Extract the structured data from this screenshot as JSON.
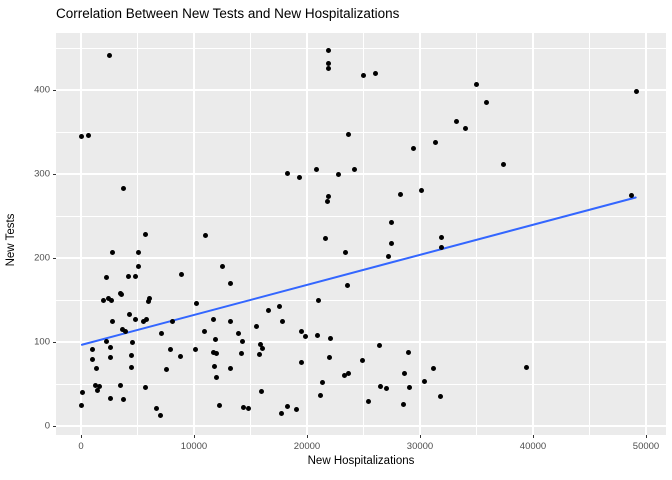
{
  "title": "Correlation Between New Tests and New Hospitalizations",
  "chart_data": {
    "type": "scatter",
    "title": "Correlation Between New Tests and New Hospitalizations",
    "xlabel": "New Hospitalizations",
    "ylabel": "New Tests",
    "xlim": [
      -2200,
      51800
    ],
    "ylim": [
      -11,
      468
    ],
    "x_ticks": [
      0,
      10000,
      20000,
      30000,
      40000,
      50000
    ],
    "x_tick_labels": [
      "0",
      "10000",
      "20000",
      "30000",
      "40000",
      "50000"
    ],
    "y_ticks": [
      0,
      100,
      200,
      300,
      400
    ],
    "y_tick_labels": [
      "0",
      "100",
      "200",
      "300",
      "400"
    ],
    "x_minor_ticks": [
      5000,
      15000,
      25000,
      35000,
      45000
    ],
    "y_minor_ticks": [
      50,
      150,
      250,
      350,
      450
    ],
    "grid": true,
    "legend": false,
    "panel_background": "#EBEBEB",
    "gridline_color": "#FFFFFF",
    "point_color": "#000000",
    "trend_line": {
      "type": "linear",
      "color": "#3366FF",
      "x_start": 0,
      "y_start": 96,
      "x_end": 49200,
      "y_end": 272
    },
    "points": [
      [
        0,
        345
      ],
      [
        700,
        346
      ],
      [
        2500,
        441
      ],
      [
        21900,
        447
      ],
      [
        21900,
        431
      ],
      [
        21900,
        426
      ],
      [
        23700,
        347
      ],
      [
        25000,
        417
      ],
      [
        26100,
        420
      ],
      [
        35000,
        406
      ],
      [
        35900,
        385
      ],
      [
        33200,
        362
      ],
      [
        34000,
        354
      ],
      [
        31400,
        338
      ],
      [
        29400,
        330
      ],
      [
        37400,
        311
      ],
      [
        49200,
        398
      ],
      [
        3800,
        283
      ],
      [
        5700,
        228
      ],
      [
        2800,
        206
      ],
      [
        5100,
        206
      ],
      [
        5100,
        190
      ],
      [
        2300,
        177
      ],
      [
        4200,
        178
      ],
      [
        4800,
        178
      ],
      [
        8900,
        180
      ],
      [
        3500,
        158
      ],
      [
        3600,
        156
      ],
      [
        2400,
        152
      ],
      [
        6100,
        152
      ],
      [
        18300,
        301
      ],
      [
        19300,
        296
      ],
      [
        20800,
        305
      ],
      [
        22800,
        300
      ],
      [
        24200,
        305
      ],
      [
        21900,
        273
      ],
      [
        21800,
        267
      ],
      [
        11000,
        227
      ],
      [
        21600,
        223
      ],
      [
        23400,
        206
      ],
      [
        12500,
        190
      ],
      [
        13200,
        170
      ],
      [
        23600,
        167
      ],
      [
        21000,
        150
      ],
      [
        28300,
        276
      ],
      [
        30100,
        280
      ],
      [
        27500,
        242
      ],
      [
        27500,
        217
      ],
      [
        27200,
        202
      ],
      [
        31900,
        224
      ],
      [
        31900,
        212
      ],
      [
        48700,
        274
      ],
      [
        2000,
        150
      ],
      [
        2700,
        149
      ],
      [
        6000,
        148
      ],
      [
        4300,
        133
      ],
      [
        4800,
        127
      ],
      [
        2800,
        125
      ],
      [
        5500,
        124
      ],
      [
        5800,
        127
      ],
      [
        3700,
        115
      ],
      [
        3900,
        112
      ],
      [
        7100,
        110
      ],
      [
        2300,
        101
      ],
      [
        2600,
        94
      ],
      [
        1000,
        91
      ],
      [
        4600,
        99
      ],
      [
        7900,
        91
      ],
      [
        1000,
        79
      ],
      [
        2600,
        81
      ],
      [
        4500,
        84
      ],
      [
        4500,
        70
      ],
      [
        1400,
        69
      ],
      [
        7600,
        67
      ],
      [
        1300,
        48
      ],
      [
        1600,
        47
      ],
      [
        1500,
        42
      ],
      [
        100,
        40
      ],
      [
        3500,
        48
      ],
      [
        2600,
        33
      ],
      [
        0,
        25
      ],
      [
        3800,
        31
      ],
      [
        5700,
        46
      ],
      [
        6700,
        21
      ],
      [
        7000,
        13
      ],
      [
        8100,
        125
      ],
      [
        8800,
        83
      ],
      [
        10100,
        91
      ],
      [
        10200,
        146
      ],
      [
        16600,
        137
      ],
      [
        17600,
        142
      ],
      [
        17800,
        125
      ],
      [
        11700,
        127
      ],
      [
        13200,
        125
      ],
      [
        10900,
        113
      ],
      [
        11900,
        103
      ],
      [
        13900,
        110
      ],
      [
        14300,
        101
      ],
      [
        15500,
        119
      ],
      [
        19500,
        112
      ],
      [
        19900,
        106
      ],
      [
        20900,
        108
      ],
      [
        22100,
        104
      ],
      [
        11700,
        88
      ],
      [
        12000,
        86
      ],
      [
        14200,
        86
      ],
      [
        15900,
        97
      ],
      [
        16100,
        92
      ],
      [
        15800,
        85
      ],
      [
        11800,
        71
      ],
      [
        13200,
        69
      ],
      [
        12000,
        58
      ],
      [
        19500,
        76
      ],
      [
        22000,
        82
      ],
      [
        23300,
        60
      ],
      [
        23700,
        62
      ],
      [
        21400,
        52
      ],
      [
        21200,
        36
      ],
      [
        16000,
        41
      ],
      [
        12300,
        25
      ],
      [
        14400,
        22
      ],
      [
        14800,
        21
      ],
      [
        18300,
        23
      ],
      [
        17700,
        15
      ],
      [
        19100,
        20
      ],
      [
        26400,
        96
      ],
      [
        29000,
        88
      ],
      [
        24900,
        78
      ],
      [
        31200,
        68
      ],
      [
        28600,
        62
      ],
      [
        30400,
        53
      ],
      [
        26500,
        47
      ],
      [
        27000,
        45
      ],
      [
        29100,
        46
      ],
      [
        25400,
        29
      ],
      [
        28500,
        26
      ],
      [
        31800,
        35
      ],
      [
        39400,
        70
      ]
    ]
  }
}
